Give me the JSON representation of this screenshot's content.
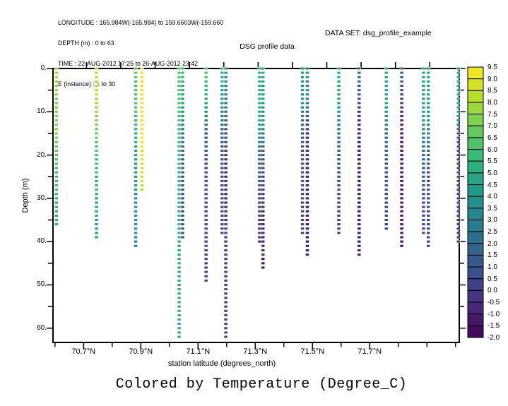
{
  "header": {
    "line1": "LONGITUDE : 165.984W(-165.984) to 159.6603W(-159.660",
    "line2": "DEPTH (m) : 0 to 63",
    "line3": "TIME : 22-AUG-2012 17:25 to 26-AUG-2012 23:42",
    "line4": "E (instance) : 1 to 30"
  },
  "dataset_label": "DATA SET: dsg_profile_example",
  "caption": "Colored by Temperature (Degree_C)",
  "chart_data": {
    "type": "scatter",
    "title": "DSG profile data",
    "xlabel": "station latitude (degrees_north)",
    "ylabel": "Depth (m)",
    "xlim": [
      70.593,
      72.013
    ],
    "ylim": [
      0,
      63.3
    ],
    "grid": false,
    "x_ticks": [
      {
        "value": 70.7,
        "label": "70.7°N"
      },
      {
        "value": 70.9,
        "label": "70.9°N"
      },
      {
        "value": 71.1,
        "label": "71.1°N"
      },
      {
        "value": 71.3,
        "label": "71.3°N"
      },
      {
        "value": 71.5,
        "label": "71.5°N"
      },
      {
        "value": 71.7,
        "label": "71.7°N"
      }
    ],
    "x_minor_ticks_start": 70.6,
    "x_minor_ticks_end": 72.0,
    "x_minor_step": 0.1,
    "y_ticks": [
      {
        "value": 0,
        "label": "0."
      },
      {
        "value": 10,
        "label": "10."
      },
      {
        "value": 20,
        "label": "20."
      },
      {
        "value": 30,
        "label": "30."
      },
      {
        "value": 40,
        "label": "40."
      },
      {
        "value": 50,
        "label": "50."
      },
      {
        "value": 60,
        "label": "60."
      }
    ],
    "y_minor_step": 5,
    "top_ticks_lat": [
      70.71,
      70.83,
      70.95,
      71.07,
      71.19,
      71.31,
      71.43,
      71.55,
      71.67,
      71.79,
      71.91
    ],
    "colorbar": {
      "units": "Degree_C",
      "min": -2.0,
      "max": 9.5,
      "step": 0.5,
      "labels_top_to_bottom": [
        "9.5",
        "9.0",
        "8.5",
        "8.0",
        "7.5",
        "7.0",
        "6.5",
        "6.0",
        "5.5",
        "5.0",
        "4.5",
        "4.0",
        "3.5",
        "3.0",
        "2.5",
        "2.0",
        "1.5",
        "1.0",
        "0.5",
        "0.0",
        "-0.5",
        "-1.0",
        "-1.5",
        "-2.0"
      ],
      "colors_top_to_bottom": [
        "#efe526",
        "#d3e229",
        "#b7de2b",
        "#9bd83c",
        "#7fd24d",
        "#65ca5d",
        "#4fc16a",
        "#39b877",
        "#2eaf7e",
        "#25a584",
        "#209b8a",
        "#23908c",
        "#25858d",
        "#297b8e",
        "#2d708e",
        "#32668e",
        "#375a8c",
        "#3c4f8a",
        "#404285",
        "#44357e",
        "#482776",
        "#461869",
        "#45095b"
      ]
    },
    "profiles": [
      {
        "lat": 70.605,
        "max_depth": 36,
        "temp_knots": [
          [
            0,
            7.7
          ],
          [
            14,
            7.2
          ],
          [
            24,
            5.8
          ],
          [
            36,
            5.1
          ]
        ]
      },
      {
        "lat": 70.745,
        "max_depth": 39,
        "temp_knots": [
          [
            0,
            8.3
          ],
          [
            8,
            7.9
          ],
          [
            18,
            6.2
          ],
          [
            30,
            4.9
          ],
          [
            39,
            4.2
          ]
        ]
      },
      {
        "lat": 70.882,
        "max_depth": 41,
        "temp_knots": [
          [
            0,
            6.6
          ],
          [
            10,
            6.0
          ],
          [
            22,
            4.4
          ],
          [
            34,
            3.7
          ],
          [
            41,
            3.4
          ]
        ]
      },
      {
        "lat": 70.904,
        "max_depth": 28,
        "temp_knots": [
          [
            0,
            9.3
          ],
          [
            16,
            9.1
          ],
          [
            24,
            8.7
          ],
          [
            28,
            8.3
          ]
        ]
      },
      {
        "lat": 71.034,
        "max_depth": 62,
        "temp_knots": [
          [
            0,
            6.4
          ],
          [
            12,
            6.0
          ],
          [
            24,
            5.4
          ],
          [
            62,
            5.1
          ]
        ]
      },
      {
        "lat": 71.046,
        "max_depth": 39,
        "temp_knots": [
          [
            0,
            6.0
          ],
          [
            8,
            4.6
          ],
          [
            15,
            2.4
          ],
          [
            24,
            1.0
          ],
          [
            39,
            0.6
          ]
        ]
      },
      {
        "lat": 71.128,
        "max_depth": 49,
        "temp_knots": [
          [
            0,
            6.2
          ],
          [
            6,
            5.6
          ],
          [
            10,
            3.6
          ],
          [
            15,
            1.3
          ],
          [
            26,
            0.7
          ],
          [
            49,
            0.4
          ]
        ]
      },
      {
        "lat": 71.184,
        "max_depth": 38,
        "temp_knots": [
          [
            0,
            5.7
          ],
          [
            8,
            3.9
          ],
          [
            15,
            1.6
          ],
          [
            25,
            0.8
          ],
          [
            38,
            0.6
          ]
        ]
      },
      {
        "lat": 71.197,
        "max_depth": 62,
        "temp_knots": [
          [
            0,
            4.3
          ],
          [
            8,
            2.6
          ],
          [
            14,
            0.9
          ],
          [
            21,
            -0.5
          ],
          [
            30,
            -0.9
          ],
          [
            38,
            0.3
          ],
          [
            62,
            0.2
          ]
        ]
      },
      {
        "lat": 71.315,
        "max_depth": 40,
        "temp_knots": [
          [
            0,
            5.3
          ],
          [
            12,
            4.9
          ],
          [
            18,
            2.3
          ],
          [
            26,
            0.6
          ],
          [
            40,
            -0.1
          ]
        ]
      },
      {
        "lat": 71.327,
        "max_depth": 46,
        "temp_knots": [
          [
            0,
            5.1
          ],
          [
            12,
            4.1
          ],
          [
            20,
            1.1
          ],
          [
            30,
            -0.4
          ],
          [
            46,
            -1.1
          ]
        ]
      },
      {
        "lat": 71.465,
        "max_depth": 38,
        "temp_knots": [
          [
            0,
            3.9
          ],
          [
            8,
            3.5
          ],
          [
            14,
            1.6
          ],
          [
            22,
            0.6
          ],
          [
            38,
            0.3
          ]
        ]
      },
      {
        "lat": 71.482,
        "max_depth": 43,
        "temp_knots": [
          [
            0,
            3.7
          ],
          [
            8,
            2.9
          ],
          [
            13,
            -0.4
          ],
          [
            24,
            -1.2
          ],
          [
            43,
            -1.3
          ]
        ]
      },
      {
        "lat": 71.592,
        "max_depth": 38,
        "temp_knots": [
          [
            0,
            5.1
          ],
          [
            8,
            4.7
          ],
          [
            13,
            3.4
          ],
          [
            18,
            1.3
          ],
          [
            28,
            0.6
          ],
          [
            38,
            0.3
          ]
        ]
      },
      {
        "lat": 71.663,
        "max_depth": 43,
        "temp_knots": [
          [
            0,
            2.1
          ],
          [
            6,
            1.1
          ],
          [
            10,
            -0.7
          ],
          [
            20,
            -1.3
          ],
          [
            43,
            -1.4
          ]
        ]
      },
      {
        "lat": 71.758,
        "max_depth": 37,
        "temp_knots": [
          [
            0,
            5.1
          ],
          [
            8,
            4.5
          ],
          [
            14,
            2.7
          ],
          [
            20,
            1.1
          ],
          [
            28,
            0.5
          ],
          [
            37,
            0.2
          ]
        ]
      },
      {
        "lat": 71.812,
        "max_depth": 41,
        "temp_knots": [
          [
            0,
            1.9
          ],
          [
            6,
            0.6
          ],
          [
            10,
            -0.8
          ],
          [
            20,
            -1.3
          ],
          [
            41,
            -1.4
          ]
        ]
      },
      {
        "lat": 71.888,
        "max_depth": 38,
        "temp_knots": [
          [
            0,
            5.1
          ],
          [
            10,
            4.7
          ],
          [
            16,
            2.9
          ],
          [
            22,
            1.3
          ],
          [
            30,
            0.7
          ],
          [
            38,
            0.5
          ]
        ]
      },
      {
        "lat": 71.905,
        "max_depth": 41,
        "temp_knots": [
          [
            0,
            4.7
          ],
          [
            10,
            4.3
          ],
          [
            16,
            2.5
          ],
          [
            24,
            0.9
          ],
          [
            32,
            0.5
          ],
          [
            41,
            0.3
          ]
        ]
      },
      {
        "lat": 72.01,
        "max_depth": 40,
        "temp_knots": [
          [
            0,
            4.9
          ],
          [
            11,
            4.5
          ],
          [
            14,
            1.1
          ],
          [
            20,
            0.4
          ],
          [
            28,
            -0.2
          ],
          [
            40,
            -0.4
          ]
        ]
      }
    ]
  }
}
